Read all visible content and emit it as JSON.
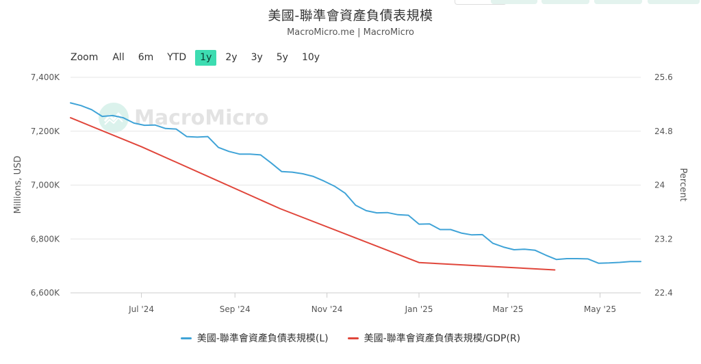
{
  "title": "美國-聯準會資產負債表規模",
  "subtitle": "MacroMicro.me | MacroMicro",
  "zoom": {
    "label": "Zoom",
    "options": [
      "All",
      "6m",
      "YTD",
      "1y",
      "2y",
      "3y",
      "5y",
      "10y"
    ],
    "active": "1y"
  },
  "watermark": "MacroMicro",
  "colors": {
    "left_series": "#3fa3d7",
    "right_series": "#e0453a",
    "active_zoom": "#3ddcb1"
  },
  "chart_data": {
    "type": "line",
    "x_tick_labels": [
      "Jul '24",
      "Sep '24",
      "Nov '24",
      "Jan '25",
      "Mar '25",
      "May '25"
    ],
    "x_tick_dates": [
      "2024-07-01",
      "2024-09-01",
      "2024-11-01",
      "2025-01-01",
      "2025-03-01",
      "2025-05-01"
    ],
    "x_range": [
      "2024-05-15",
      "2025-05-28"
    ],
    "y_left": {
      "label": "Millions, USD",
      "range": [
        6600,
        7400
      ],
      "ticks": [
        6600,
        6800,
        7000,
        7200,
        7400
      ],
      "tick_labels": [
        "6,600K",
        "6,800K",
        "7,000K",
        "7,200K",
        "7,400K"
      ]
    },
    "y_right": {
      "label": "Percent",
      "range": [
        22.4,
        25.6
      ],
      "ticks": [
        22.4,
        23.2,
        24,
        24.8,
        25.6
      ],
      "tick_labels": [
        "22.4",
        "23.2",
        "24",
        "24.8",
        "25.6"
      ]
    },
    "grid": true,
    "legend_position": "bottom",
    "series": [
      {
        "name": "美國-聯準會資產負債表規模(L)",
        "axis": "left",
        "x": [
          "2024-05-15",
          "2024-05-22",
          "2024-05-29",
          "2024-06-05",
          "2024-06-12",
          "2024-06-19",
          "2024-06-26",
          "2024-07-03",
          "2024-07-10",
          "2024-07-17",
          "2024-07-24",
          "2024-07-31",
          "2024-08-07",
          "2024-08-14",
          "2024-08-21",
          "2024-08-28",
          "2024-09-04",
          "2024-09-11",
          "2024-09-18",
          "2024-09-25",
          "2024-10-02",
          "2024-10-09",
          "2024-10-16",
          "2024-10-23",
          "2024-10-30",
          "2024-11-06",
          "2024-11-13",
          "2024-11-20",
          "2024-11-27",
          "2024-12-04",
          "2024-12-11",
          "2024-12-18",
          "2024-12-25",
          "2025-01-01",
          "2025-01-08",
          "2025-01-15",
          "2025-01-22",
          "2025-01-29",
          "2025-02-05",
          "2025-02-12",
          "2025-02-19",
          "2025-02-26",
          "2025-03-05",
          "2025-03-12",
          "2025-03-19",
          "2025-03-26",
          "2025-04-02",
          "2025-04-09",
          "2025-04-16",
          "2025-04-23",
          "2025-04-30",
          "2025-05-07",
          "2025-05-14",
          "2025-05-21",
          "2025-05-28"
        ],
        "values": [
          7305,
          7295,
          7280,
          7255,
          7258,
          7250,
          7230,
          7222,
          7223,
          7210,
          7208,
          7180,
          7178,
          7180,
          7140,
          7125,
          7115,
          7115,
          7112,
          7082,
          7050,
          7048,
          7042,
          7032,
          7015,
          6996,
          6970,
          6925,
          6905,
          6897,
          6898,
          6890,
          6888,
          6855,
          6856,
          6835,
          6835,
          6822,
          6815,
          6816,
          6784,
          6770,
          6760,
          6762,
          6758,
          6740,
          6724,
          6727,
          6727,
          6726,
          6710,
          6711,
          6713,
          6716,
          6716
        ]
      },
      {
        "name": "美國-聯準會資產負債表規模/GDP(R)",
        "axis": "right",
        "x": [
          "2024-05-15",
          "2024-07-01",
          "2024-10-01",
          "2025-01-01",
          "2025-04-01"
        ],
        "values": [
          25.0,
          24.57,
          23.65,
          22.85,
          22.74
        ]
      }
    ]
  }
}
